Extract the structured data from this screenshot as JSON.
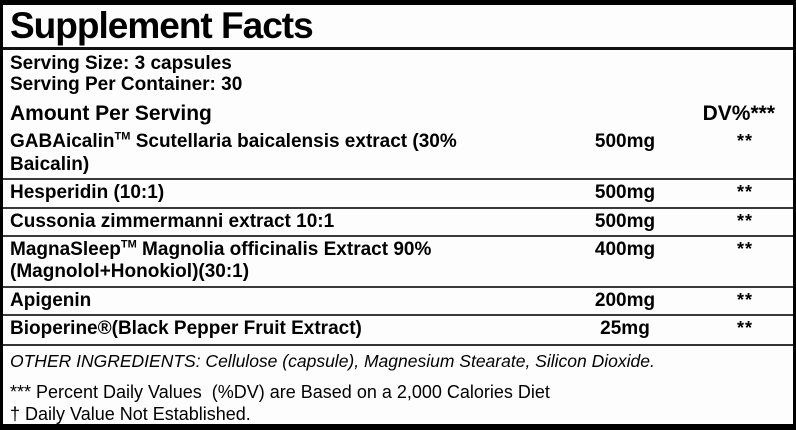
{
  "label": {
    "title": "Supplement Facts",
    "serving_size": "Serving Size: 3 capsules",
    "serving_per_container": "Serving Per Container: 30",
    "columns": {
      "amount_header": "Amount Per Serving",
      "dv_header": "DV%***"
    },
    "rows": [
      {
        "pre": "GABAicalin",
        "tm": "TM",
        "post": " Scutellaria baicalensis extract (30% Baicalin)",
        "amount": "500mg",
        "dv": "**"
      },
      {
        "pre": "Hesperidin (10:1)",
        "tm": "",
        "post": "",
        "amount": "500mg",
        "dv": "**"
      },
      {
        "pre": "Cussonia zimmermanni extract 10:1",
        "tm": "",
        "post": "",
        "amount": "500mg",
        "dv": "**"
      },
      {
        "pre": "MagnaSleep",
        "tm": "TM",
        "post": " Magnolia officinalis Extract 90% (Magnolol+Honokiol)(30:1)",
        "amount": "400mg",
        "dv": "**"
      },
      {
        "pre": "Apigenin",
        "tm": "",
        "post": "",
        "amount": "200mg",
        "dv": "**"
      },
      {
        "pre": "Bioperine®(Black Pepper Fruit Extract)",
        "tm": "",
        "post": "",
        "amount": "25mg",
        "dv": "**"
      }
    ],
    "other_ingredients": "OTHER INGREDIENTS: Cellulose (capsule), Magnesium Stearate, Silicon Dioxide.",
    "footnotes": [
      "*** Percent Daily Values  (%DV) are Based on a 2,000 Calories Diet",
      "† Daily Value Not Established."
    ],
    "colors": {
      "ink": "#000000",
      "background": "#fdfdfd"
    }
  }
}
